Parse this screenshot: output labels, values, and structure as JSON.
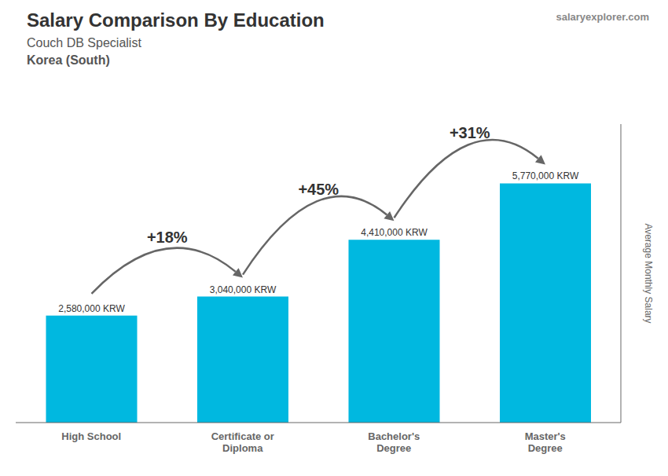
{
  "chart_data": {
    "type": "bar",
    "title": "Salary Comparison By Education",
    "subtitle": "Couch DB Specialist",
    "country": "Korea (South)",
    "source": "salaryexplorer.com",
    "y_label": "Average Monthly Salary",
    "categories": [
      "High School",
      "Certificate or\nDiploma",
      "Bachelor's\nDegree",
      "Master's\nDegree"
    ],
    "values": [
      2580000,
      3040000,
      4410000,
      5770000
    ],
    "value_labels": [
      "2,580,000 KRW",
      "3,040,000 KRW",
      "4,410,000 KRW",
      "5,770,000 KRW"
    ],
    "data_labels": true,
    "annotations": [
      "+18%",
      "+45%",
      "+31%"
    ],
    "color": "#00b8e0",
    "ylim": [
      0,
      7200000
    ],
    "yticks": [],
    "tick_labels": "x",
    "grid": false
  }
}
